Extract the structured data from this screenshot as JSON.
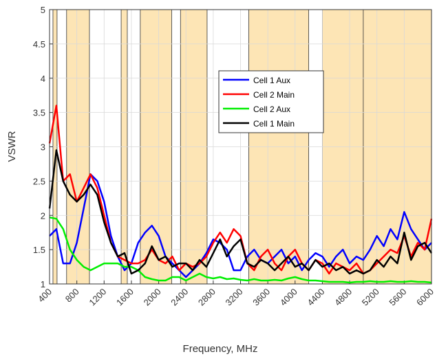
{
  "chart_data": {
    "type": "line",
    "x_label": "Frequency, MHz",
    "y_label": "VSWR",
    "x": [
      400,
      500,
      600,
      700,
      800,
      900,
      1000,
      1100,
      1200,
      1300,
      1400,
      1500,
      1600,
      1700,
      1800,
      1900,
      2000,
      2100,
      2200,
      2300,
      2400,
      2500,
      2600,
      2700,
      2800,
      2900,
      3000,
      3100,
      3200,
      3300,
      3400,
      3500,
      3600,
      3700,
      3800,
      3900,
      4000,
      4100,
      4200,
      4300,
      4400,
      4500,
      4600,
      4700,
      4800,
      4900,
      5000,
      5100,
      5200,
      5300,
      5400,
      5500,
      5600,
      5700,
      5800,
      5900,
      6000
    ],
    "series": [
      {
        "name": "Cell 1 Aux",
        "color": "#0000ff",
        "values": [
          1.7,
          1.8,
          1.3,
          1.3,
          1.6,
          2.1,
          2.6,
          2.5,
          2.2,
          1.7,
          1.4,
          1.2,
          1.3,
          1.6,
          1.75,
          1.85,
          1.7,
          1.4,
          1.3,
          1.2,
          1.1,
          1.2,
          1.3,
          1.45,
          1.65,
          1.6,
          1.5,
          1.2,
          1.2,
          1.4,
          1.5,
          1.35,
          1.3,
          1.4,
          1.5,
          1.3,
          1.4,
          1.2,
          1.35,
          1.45,
          1.4,
          1.25,
          1.4,
          1.5,
          1.3,
          1.4,
          1.35,
          1.5,
          1.7,
          1.55,
          1.8,
          1.65,
          2.05,
          1.8,
          1.65,
          1.5,
          1.6
        ]
      },
      {
        "name": "Cell 2 Main",
        "color": "#ff0000",
        "values": [
          3.05,
          3.6,
          2.5,
          2.6,
          2.2,
          2.4,
          2.6,
          2.4,
          2.0,
          1.6,
          1.4,
          1.35,
          1.3,
          1.3,
          1.35,
          1.5,
          1.35,
          1.3,
          1.4,
          1.2,
          1.3,
          1.25,
          1.3,
          1.4,
          1.6,
          1.75,
          1.6,
          1.8,
          1.7,
          1.3,
          1.2,
          1.4,
          1.5,
          1.3,
          1.2,
          1.4,
          1.5,
          1.3,
          1.2,
          1.35,
          1.3,
          1.15,
          1.3,
          1.25,
          1.2,
          1.3,
          1.15,
          1.2,
          1.3,
          1.4,
          1.5,
          1.45,
          1.7,
          1.4,
          1.6,
          1.5,
          1.95
        ]
      },
      {
        "name": "Cell 2 Aux",
        "color": "#00ee00",
        "values": [
          1.97,
          1.95,
          1.8,
          1.5,
          1.35,
          1.25,
          1.2,
          1.25,
          1.3,
          1.3,
          1.3,
          1.25,
          1.25,
          1.2,
          1.1,
          1.07,
          1.05,
          1.05,
          1.1,
          1.1,
          1.05,
          1.1,
          1.15,
          1.1,
          1.08,
          1.1,
          1.07,
          1.08,
          1.06,
          1.05,
          1.07,
          1.05,
          1.05,
          1.06,
          1.05,
          1.08,
          1.1,
          1.07,
          1.05,
          1.05,
          1.04,
          1.03,
          1.03,
          1.03,
          1.02,
          1.03,
          1.03,
          1.04,
          1.03,
          1.03,
          1.04,
          1.03,
          1.03,
          1.04,
          1.03,
          1.03,
          1.02
        ]
      },
      {
        "name": "Cell 1 Main",
        "color": "#000000",
        "values": [
          2.1,
          2.95,
          2.5,
          2.3,
          2.2,
          2.3,
          2.45,
          2.3,
          1.9,
          1.6,
          1.4,
          1.45,
          1.15,
          1.2,
          1.3,
          1.55,
          1.35,
          1.4,
          1.25,
          1.3,
          1.3,
          1.2,
          1.35,
          1.25,
          1.45,
          1.65,
          1.4,
          1.55,
          1.65,
          1.3,
          1.25,
          1.35,
          1.3,
          1.2,
          1.3,
          1.4,
          1.25,
          1.3,
          1.2,
          1.35,
          1.25,
          1.3,
          1.2,
          1.25,
          1.15,
          1.2,
          1.15,
          1.2,
          1.35,
          1.25,
          1.4,
          1.3,
          1.75,
          1.35,
          1.55,
          1.6,
          1.45
        ]
      }
    ],
    "shaded_bands": [
      [
        450,
        510
      ],
      [
        650,
        985
      ],
      [
        1450,
        1540
      ],
      [
        1730,
        2190
      ],
      [
        2320,
        2710
      ],
      [
        3320,
        4200
      ],
      [
        4400,
        5000
      ],
      [
        5000,
        6000
      ]
    ],
    "band_color": "#fde5b5",
    "xlim": [
      400,
      6000
    ],
    "xticks": [
      400,
      800,
      1200,
      1600,
      2000,
      2400,
      2800,
      3200,
      3600,
      4000,
      4400,
      4800,
      5200,
      5600,
      6000
    ],
    "ylim": [
      1,
      5
    ],
    "yticks": [
      1,
      1.5,
      2,
      2.5,
      3,
      3.5,
      4,
      4.5,
      5
    ],
    "grid": true,
    "legend": "upper-center"
  }
}
